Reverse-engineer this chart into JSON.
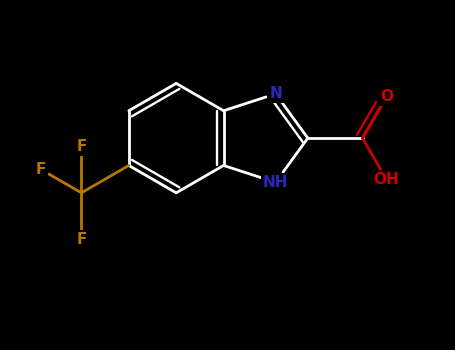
{
  "background_color": "#000000",
  "bond_color": "#ffffff",
  "bond_width": 2.0,
  "atom_colors": {
    "F": "#b87800",
    "N": "#2828bb",
    "NH": "#2828bb",
    "O": "#cc0000",
    "OH": "#cc0000"
  },
  "font_size": 11,
  "figsize": [
    4.55,
    3.5
  ],
  "dpi": 100
}
